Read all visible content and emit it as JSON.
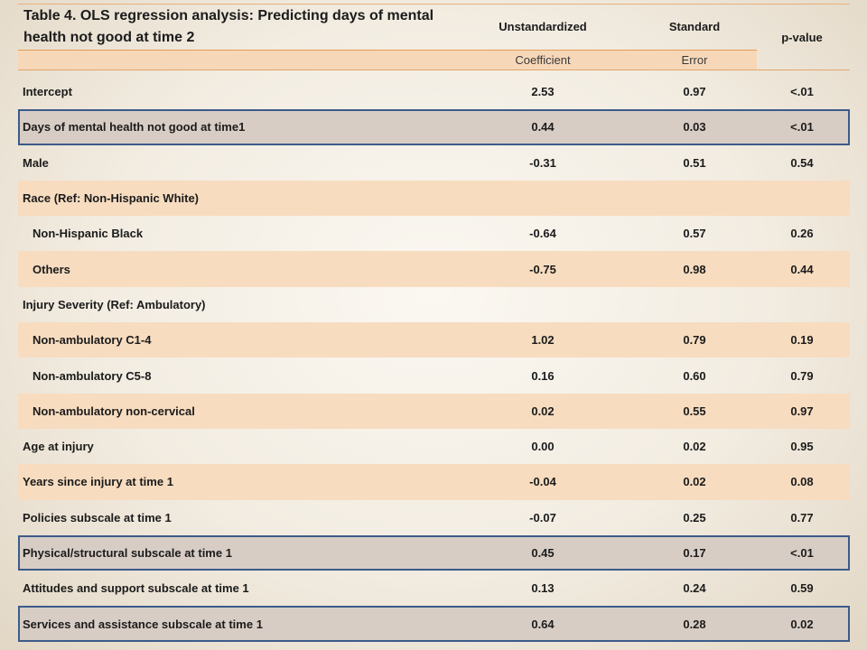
{
  "table": {
    "title": "Table 4. OLS regression analysis: Predicting days of mental health not good at time 2",
    "columns": {
      "col1_top": "Unstandardized",
      "col1_bottom": "Coefficient",
      "col2_top": "Standard",
      "col2_bottom": "Error",
      "col3": "p-value"
    },
    "rows": [
      {
        "label": "Intercept",
        "coef": "2.53",
        "se": "0.97",
        "p": "<.01",
        "indent": false,
        "shade": false,
        "highlight": false
      },
      {
        "label": "Days of mental health not good at time1",
        "coef": "0.44",
        "se": "0.03",
        "p": "<.01",
        "indent": false,
        "shade": false,
        "highlight": true
      },
      {
        "label": "Male",
        "coef": "-0.31",
        "se": "0.51",
        "p": "0.54",
        "indent": false,
        "shade": false,
        "highlight": false
      },
      {
        "label": "Race (Ref: Non-Hispanic White)",
        "coef": "",
        "se": "",
        "p": "",
        "indent": false,
        "shade": true,
        "highlight": false
      },
      {
        "label": "Non-Hispanic Black",
        "coef": "-0.64",
        "se": "0.57",
        "p": "0.26",
        "indent": true,
        "shade": false,
        "highlight": false
      },
      {
        "label": "Others",
        "coef": "-0.75",
        "se": "0.98",
        "p": "0.44",
        "indent": true,
        "shade": true,
        "highlight": false
      },
      {
        "label": "Injury Severity (Ref: Ambulatory)",
        "coef": "",
        "se": "",
        "p": "",
        "indent": false,
        "shade": false,
        "highlight": false
      },
      {
        "label": "Non-ambulatory C1-4",
        "coef": "1.02",
        "se": "0.79",
        "p": "0.19",
        "indent": true,
        "shade": true,
        "highlight": false
      },
      {
        "label": "Non-ambulatory C5-8",
        "coef": "0.16",
        "se": "0.60",
        "p": "0.79",
        "indent": true,
        "shade": false,
        "highlight": false
      },
      {
        "label": "Non-ambulatory non-cervical",
        "coef": "0.02",
        "se": "0.55",
        "p": "0.97",
        "indent": true,
        "shade": true,
        "highlight": false
      },
      {
        "label": "Age at injury",
        "coef": "0.00",
        "se": "0.02",
        "p": "0.95",
        "indent": false,
        "shade": false,
        "highlight": false
      },
      {
        "label": "Years since injury at time 1",
        "coef": "-0.04",
        "se": "0.02",
        "p": "0.08",
        "indent": false,
        "shade": true,
        "highlight": false
      },
      {
        "label": "Policies subscale at time 1",
        "coef": "-0.07",
        "se": "0.25",
        "p": "0.77",
        "indent": false,
        "shade": false,
        "highlight": false
      },
      {
        "label": "Physical/structural subscale at time 1",
        "coef": "0.45",
        "se": "0.17",
        "p": "<.01",
        "indent": false,
        "shade": false,
        "highlight": true
      },
      {
        "label": "Attitudes and support subscale  at time 1",
        "coef": "0.13",
        "se": "0.24",
        "p": "0.59",
        "indent": false,
        "shade": false,
        "highlight": false
      },
      {
        "label": "Services and assistance subscale at time 1",
        "coef": "0.64",
        "se": "0.28",
        "p": "0.02",
        "indent": false,
        "shade": false,
        "highlight": true
      }
    ]
  },
  "colors": {
    "shade": "#f7dcc0",
    "highlight_fill": "#d8cdc5",
    "highlight_border": "#3c5b8a",
    "header_band": "#f6d7b8"
  }
}
